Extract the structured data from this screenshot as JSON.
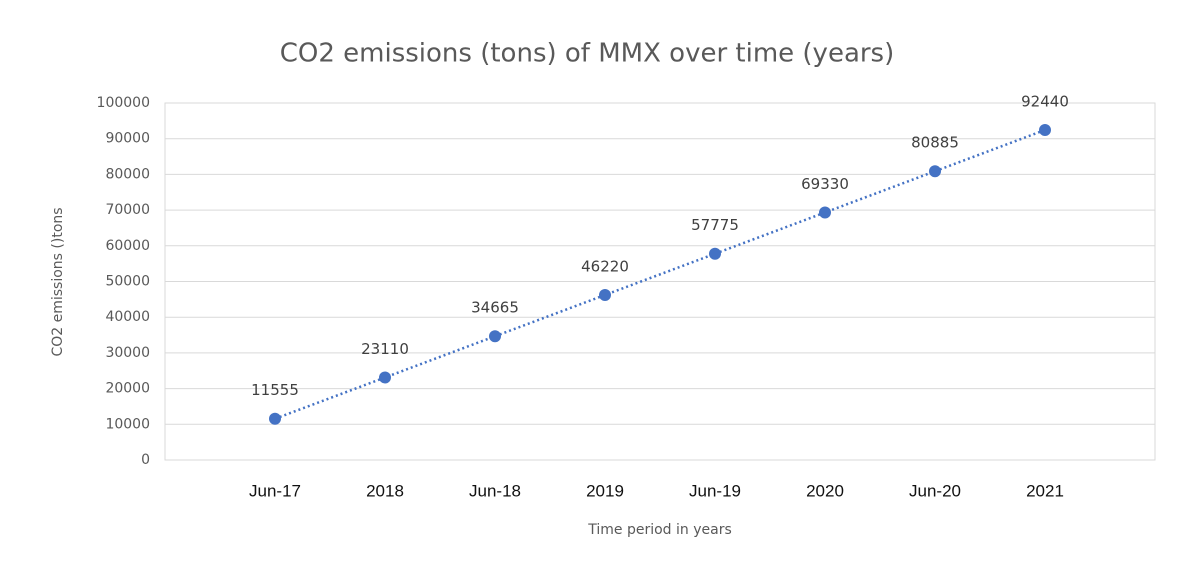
{
  "chart_data": {
    "type": "line",
    "title": "CO2 emissions (tons) of MMX over time (years)",
    "x_label": "Time period in years",
    "y_label": "CO2 emissions ()tons",
    "categories": [
      "Jun-17",
      "2018",
      "Jun-18",
      "2019",
      "Jun-19",
      "2020",
      "Jun-20",
      "2021"
    ],
    "series": [
      {
        "color": "#4472c4",
        "values": [
          11555,
          23110,
          34665,
          46220,
          57775,
          69330,
          80885,
          92440
        ]
      }
    ],
    "ylim": [
      0,
      100000
    ],
    "yticks": [
      0,
      10000,
      20000,
      30000,
      40000,
      50000,
      60000,
      70000,
      80000,
      90000,
      100000
    ],
    "grid": true
  }
}
